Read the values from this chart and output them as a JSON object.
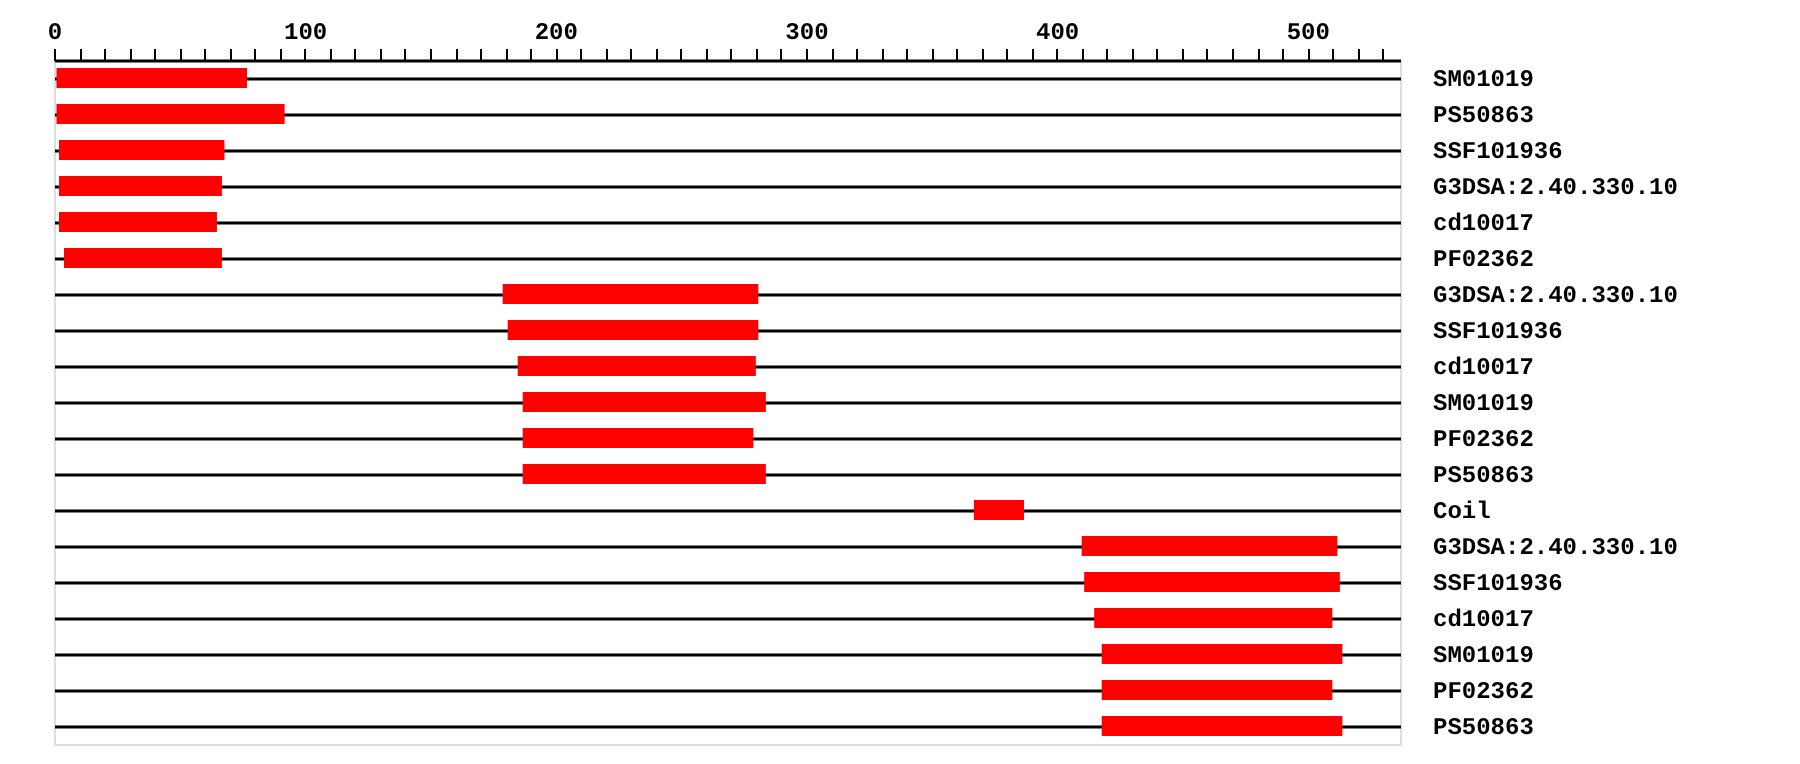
{
  "chart_data": {
    "type": "bar",
    "orientation": "horizontal",
    "categories": [
      "SM01019",
      "PS50863",
      "SSF101936",
      "G3DSA:2.40.330.10",
      "cd10017",
      "PF02362",
      "G3DSA:2.40.330.10",
      "SSF101936",
      "cd10017",
      "SM01019",
      "PF02362",
      "PS50863",
      "Coil",
      "G3DSA:2.40.330.10",
      "SSF101936",
      "cd10017",
      "SM01019",
      "PF02362",
      "PS50863"
    ],
    "base": [
      1,
      1,
      2,
      2,
      2,
      4,
      179,
      181,
      185,
      187,
      187,
      187,
      367,
      410,
      411,
      415,
      418,
      418,
      418
    ],
    "values": [
      76,
      91,
      66,
      65,
      63,
      63,
      102,
      100,
      95,
      97,
      92,
      97,
      20,
      102,
      102,
      95,
      96,
      92,
      96
    ],
    "color": "#ff0000",
    "xlim": [
      0,
      537
    ],
    "xticks": [
      0,
      {
        "value": 10,
        "label": null
      },
      {
        "value": 20,
        "label": null
      },
      {
        "value": 30,
        "label": null
      },
      {
        "value": 40,
        "label": null
      },
      {
        "value": 50,
        "label": null
      },
      {
        "value": 60,
        "label": null
      },
      {
        "value": 70,
        "label": null
      },
      {
        "value": 80,
        "label": null
      },
      {
        "value": 90,
        "label": null
      },
      100,
      {
        "value": 110,
        "label": null
      },
      {
        "value": 120,
        "label": null
      },
      {
        "value": 130,
        "label": null
      },
      {
        "value": 140,
        "label": null
      },
      {
        "value": 150,
        "label": null
      },
      {
        "value": 160,
        "label": null
      },
      {
        "value": 170,
        "label": null
      },
      {
        "value": 180,
        "label": null
      },
      {
        "value": 190,
        "label": null
      },
      200,
      {
        "value": 210,
        "label": null
      },
      {
        "value": 220,
        "label": null
      },
      {
        "value": 230,
        "label": null
      },
      {
        "value": 240,
        "label": null
      },
      {
        "value": 250,
        "label": null
      },
      {
        "value": 260,
        "label": null
      },
      {
        "value": 270,
        "label": null
      },
      {
        "value": 280,
        "label": null
      },
      {
        "value": 290,
        "label": null
      },
      300,
      {
        "value": 310,
        "label": null
      },
      {
        "value": 320,
        "label": null
      },
      {
        "value": 330,
        "label": null
      },
      {
        "value": 340,
        "label": null
      },
      {
        "value": 350,
        "label": null
      },
      {
        "value": 360,
        "label": null
      },
      {
        "value": 370,
        "label": null
      },
      {
        "value": 380,
        "label": null
      },
      {
        "value": 390,
        "label": null
      },
      400,
      {
        "value": 410,
        "label": null
      },
      {
        "value": 420,
        "label": null
      },
      {
        "value": 430,
        "label": null
      },
      {
        "value": 440,
        "label": null
      },
      {
        "value": 450,
        "label": null
      },
      {
        "value": 460,
        "label": null
      },
      {
        "value": 470,
        "label": null
      },
      {
        "value": 480,
        "label": null
      },
      {
        "value": 490,
        "label": null
      },
      500,
      {
        "value": 510,
        "label": null
      },
      {
        "value": 520,
        "label": null
      },
      {
        "value": 530,
        "label": null
      }
    ],
    "grid": "y"
  }
}
